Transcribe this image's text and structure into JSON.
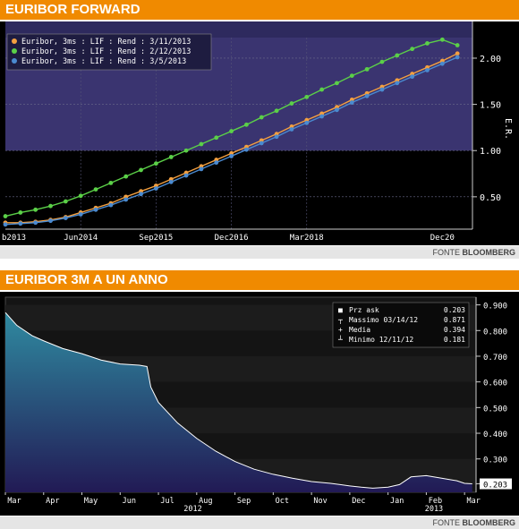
{
  "panels": {
    "top_title": "EURIBOR FORWARD",
    "bottom_title": "EURIBOR 3M A UN ANNO",
    "source_prefix": "FONTE",
    "source_name": "BLOOMBERG"
  },
  "colors": {
    "header_orange": "#f08a00",
    "band_purple": "#3a3470",
    "background_black": "#000000",
    "series_orange": "#f4a040",
    "series_green": "#5bd048",
    "series_blue": "#4a8ad0",
    "area_top_teal": "#2f8aa0",
    "area_bottom_navy": "#221a55"
  },
  "chart_data": [
    {
      "type": "line",
      "title": "",
      "ylabel": "E.R.",
      "xlim": [
        "2013-03-01",
        "2020-12-01"
      ],
      "ylim": [
        0.15,
        2.3
      ],
      "x_ticks": [
        "b2013",
        "Jun2014",
        "Sep2015",
        "Dec2016",
        "Mar2018",
        "Dec20"
      ],
      "y_ticks": [
        "0.50",
        "1.00",
        "1.50",
        "2.00"
      ],
      "legend_position": "top-left",
      "x": [
        "2013-03",
        "2013-06",
        "2013-09",
        "2013-12",
        "2014-03",
        "2014-06",
        "2014-09",
        "2014-12",
        "2015-03",
        "2015-06",
        "2015-09",
        "2015-12",
        "2016-03",
        "2016-06",
        "2016-09",
        "2016-12",
        "2017-03",
        "2017-06",
        "2017-09",
        "2017-12",
        "2018-03",
        "2018-06",
        "2018-09",
        "2018-12",
        "2019-03",
        "2019-06",
        "2019-09",
        "2019-12",
        "2020-03",
        "2020-06",
        "2020-09"
      ],
      "series": [
        {
          "name": "Euribor, 3ms : LIF : Rend : 3/11/2013",
          "color": "#f4a040",
          "values": [
            0.22,
            0.22,
            0.23,
            0.25,
            0.28,
            0.33,
            0.38,
            0.43,
            0.5,
            0.56,
            0.62,
            0.69,
            0.76,
            0.83,
            0.9,
            0.97,
            1.04,
            1.11,
            1.18,
            1.26,
            1.33,
            1.4,
            1.47,
            1.55,
            1.62,
            1.69,
            1.76,
            1.83,
            1.9,
            1.97,
            2.05
          ]
        },
        {
          "name": "Euribor, 3ms : LIF : Rend : 2/12/2013",
          "color": "#5bd048",
          "values": [
            0.29,
            0.33,
            0.36,
            0.4,
            0.45,
            0.51,
            0.58,
            0.65,
            0.72,
            0.79,
            0.86,
            0.93,
            1.0,
            1.07,
            1.14,
            1.21,
            1.28,
            1.36,
            1.43,
            1.51,
            1.58,
            1.66,
            1.73,
            1.81,
            1.88,
            1.96,
            2.03,
            2.1,
            2.16,
            2.2,
            2.14
          ]
        },
        {
          "name": "Euribor, 3ms : LIF : Rend : 3/5/2013",
          "color": "#4a8ad0",
          "values": [
            0.2,
            0.21,
            0.22,
            0.24,
            0.27,
            0.31,
            0.36,
            0.41,
            0.47,
            0.53,
            0.59,
            0.66,
            0.73,
            0.8,
            0.87,
            0.94,
            1.01,
            1.08,
            1.15,
            1.23,
            1.3,
            1.37,
            1.44,
            1.52,
            1.59,
            1.66,
            1.73,
            1.8,
            1.87,
            1.94,
            2.01
          ]
        }
      ]
    },
    {
      "type": "area",
      "title": "",
      "ylim": [
        0.17,
        0.93
      ],
      "y_ticks": [
        "0.900",
        "0.800",
        "0.700",
        "0.600",
        "0.500",
        "0.400",
        "0.300",
        "0.203"
      ],
      "x_ticks": [
        "Mar",
        "Apr",
        "May",
        "Jun",
        "Jul",
        "Aug",
        "Sep",
        "Oct",
        "Nov",
        "Dec",
        "Jan",
        "Feb",
        "Mar"
      ],
      "x_year_labels": [
        "2012",
        "2013"
      ],
      "legend_position": "top-right",
      "legend": [
        {
          "label": "Prz ask",
          "value": "0.203"
        },
        {
          "label": "Massimo 03/14/12",
          "value": "0.871"
        },
        {
          "label": "Media",
          "value": "0.394"
        },
        {
          "label": "Minimo 12/11/12",
          "value": "0.181"
        }
      ],
      "last_value_label": "0.203",
      "series": [
        {
          "name": "",
          "x": [
            0,
            0.3,
            0.7,
            1,
            1.5,
            2,
            2.5,
            3,
            3.5,
            3.7,
            3.8,
            4,
            4.5,
            5,
            5.5,
            6,
            6.5,
            7,
            7.5,
            8,
            8.5,
            9,
            9.3,
            9.6,
            10,
            10.3,
            10.6,
            11,
            11.4,
            11.8,
            12,
            12.2
          ],
          "values": [
            0.87,
            0.82,
            0.78,
            0.76,
            0.73,
            0.71,
            0.685,
            0.67,
            0.665,
            0.66,
            0.58,
            0.52,
            0.44,
            0.38,
            0.33,
            0.29,
            0.26,
            0.24,
            0.225,
            0.212,
            0.205,
            0.195,
            0.19,
            0.186,
            0.19,
            0.2,
            0.23,
            0.235,
            0.225,
            0.215,
            0.205,
            0.203
          ]
        }
      ]
    }
  ]
}
